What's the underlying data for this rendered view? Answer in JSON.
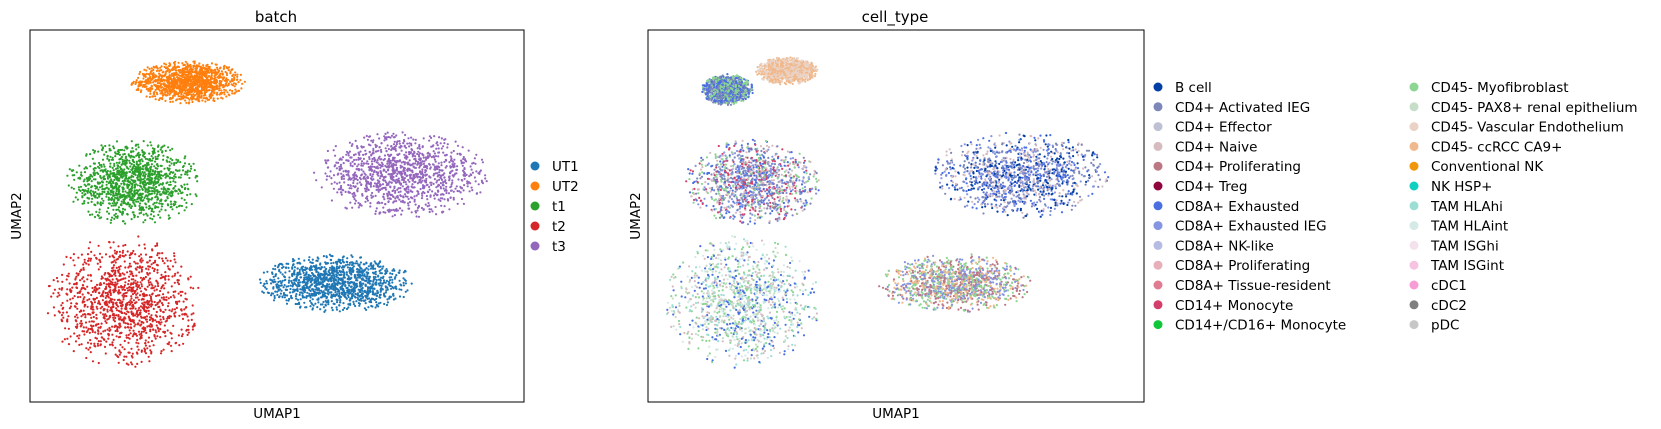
{
  "chart_data": [
    {
      "type": "scatter",
      "title": "batch",
      "xlabel": "UMAP1",
      "ylabel": "UMAP2",
      "ticks": "none",
      "legend": "right",
      "categories": [
        {
          "name": "UT1",
          "color": "#1f77b4"
        },
        {
          "name": "UT2",
          "color": "#ff7f0e"
        },
        {
          "name": "t1",
          "color": "#2ca02c"
        },
        {
          "name": "t2",
          "color": "#d62728"
        },
        {
          "name": "t3",
          "color": "#9467bd"
        }
      ],
      "clusters": [
        {
          "category": "UT2",
          "x": 0.32,
          "y": 0.86,
          "sx": 0.11,
          "sy": 0.055
        },
        {
          "category": "t1",
          "x": 0.21,
          "y": 0.59,
          "sx": 0.13,
          "sy": 0.11
        },
        {
          "category": "t3",
          "x": 0.75,
          "y": 0.61,
          "sx": 0.17,
          "sy": 0.11
        },
        {
          "category": "t2",
          "x": 0.19,
          "y": 0.27,
          "sx": 0.15,
          "sy": 0.17
        },
        {
          "category": "UT1",
          "x": 0.62,
          "y": 0.32,
          "sx": 0.15,
          "sy": 0.075
        }
      ]
    },
    {
      "type": "scatter",
      "title": "cell_type",
      "xlabel": "UMAP1",
      "ylabel": "UMAP2",
      "ticks": "none",
      "legend": "right, two columns",
      "categories": [
        {
          "name": "B cell",
          "color": "#023fa5"
        },
        {
          "name": "CD4+ Activated IEG",
          "color": "#7d87b9"
        },
        {
          "name": "CD4+ Effector",
          "color": "#bec1d4"
        },
        {
          "name": "CD4+ Naive",
          "color": "#d6bcc0"
        },
        {
          "name": "CD4+ Proliferating",
          "color": "#bb7784"
        },
        {
          "name": "CD4+ Treg",
          "color": "#8e063b"
        },
        {
          "name": "CD8A+ Exhausted",
          "color": "#4a6fe3"
        },
        {
          "name": "CD8A+ Exhausted IEG",
          "color": "#8595e1"
        },
        {
          "name": "CD8A+ NK-like",
          "color": "#b5bbe3"
        },
        {
          "name": "CD8A+ Proliferating",
          "color": "#e6afb9"
        },
        {
          "name": "CD8A+ Tissue-resident",
          "color": "#e07b91"
        },
        {
          "name": "CD14+ Monocyte",
          "color": "#d33f6a"
        },
        {
          "name": "CD14+/CD16+ Monocyte",
          "color": "#11c638"
        },
        {
          "name": "CD45- Myofibroblast",
          "color": "#8dd593"
        },
        {
          "name": "CD45- PAX8+ renal epithelium",
          "color": "#c6dec7"
        },
        {
          "name": "CD45- Vascular Endothelium",
          "color": "#ead3c6"
        },
        {
          "name": "CD45- ccRCC CA9+",
          "color": "#f0b98d"
        },
        {
          "name": "Conventional NK",
          "color": "#ef9708"
        },
        {
          "name": "NK HSP+",
          "color": "#0fcfc0"
        },
        {
          "name": "TAM HLAhi",
          "color": "#9cded6"
        },
        {
          "name": "TAM HLAint",
          "color": "#d5eae7"
        },
        {
          "name": "TAM ISGhi",
          "color": "#f3e1eb"
        },
        {
          "name": "TAM ISGint",
          "color": "#f6c4e1"
        },
        {
          "name": "cDC1",
          "color": "#f79cd4"
        },
        {
          "name": "cDC2",
          "color": "#7f7f7f"
        },
        {
          "name": "pDC",
          "color": "#c7c7c7"
        }
      ],
      "clusters": [
        {
          "mix": [
            "CD45- Vascular Endothelium",
            "CD45- ccRCC CA9+"
          ],
          "x": 0.28,
          "y": 0.89,
          "sx": 0.06,
          "sy": 0.035
        },
        {
          "mix": [
            "CD45- Myofibroblast",
            "CD4+ Activated IEG",
            "CD8A+ Exhausted"
          ],
          "x": 0.16,
          "y": 0.84,
          "sx": 0.05,
          "sy": 0.04
        },
        {
          "mix": [
            "CD8A+ Exhausted",
            "CD4+ Activated IEG",
            "CD45- Myofibroblast",
            "CD4+ Naive",
            "CD8A+ Exhausted IEG",
            "CD14+ Monocyte"
          ],
          "x": 0.21,
          "y": 0.59,
          "sx": 0.13,
          "sy": 0.11
        },
        {
          "mix": [
            "CD8A+ Exhausted",
            "CD8A+ Exhausted IEG",
            "CD4+ Activated IEG",
            "CD4+ Naive",
            "B cell"
          ],
          "x": 0.75,
          "y": 0.61,
          "sx": 0.17,
          "sy": 0.11
        },
        {
          "mix": [
            "CD45- Myofibroblast",
            "TAM HLAhi",
            "CD4+ Naive",
            "CD8A+ Exhausted",
            "CD45- PAX8+ renal epithelium",
            "TAM HLAint"
          ],
          "x": 0.19,
          "y": 0.27,
          "sx": 0.15,
          "sy": 0.17
        },
        {
          "mix": [
            "CD45- Myofibroblast",
            "CD4+ Proliferating",
            "CD8A+ Exhausted IEG",
            "CD45- ccRCC CA9+"
          ],
          "x": 0.62,
          "y": 0.32,
          "sx": 0.15,
          "sy": 0.075
        }
      ]
    }
  ]
}
